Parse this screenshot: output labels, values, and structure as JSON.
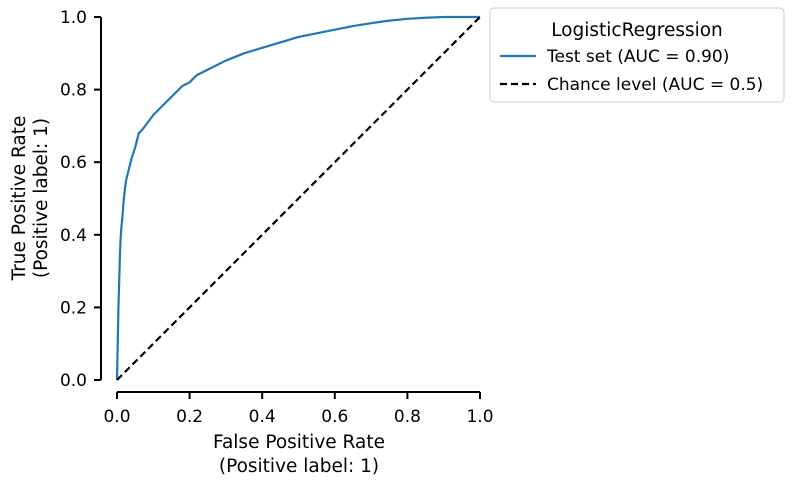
{
  "chart_data": {
    "type": "line",
    "title": "",
    "xlabel_lines": [
      "False Positive Rate",
      "(Positive label: 1)"
    ],
    "ylabel_lines": [
      "True Positive Rate",
      "(Positive label: 1)"
    ],
    "xlim": [
      0.0,
      1.0
    ],
    "ylim": [
      0.0,
      1.0
    ],
    "xticks": [
      "0.0",
      "0.2",
      "0.4",
      "0.6",
      "0.8",
      "1.0"
    ],
    "yticks": [
      "0.0",
      "0.2",
      "0.4",
      "0.6",
      "0.8",
      "1.0"
    ],
    "grid": false,
    "legend": {
      "title": "LogisticRegression",
      "placement": "outside-top-right"
    },
    "series": [
      {
        "name": "Test set (AUC = 0.90)",
        "color": "#1f77b4",
        "style": "solid",
        "x": [
          0.0,
          0.002,
          0.004,
          0.006,
          0.008,
          0.01,
          0.012,
          0.015,
          0.018,
          0.021,
          0.025,
          0.03,
          0.035,
          0.04,
          0.05,
          0.06,
          0.07,
          0.085,
          0.1,
          0.12,
          0.14,
          0.16,
          0.18,
          0.2,
          0.22,
          0.25,
          0.28,
          0.3,
          0.35,
          0.4,
          0.45,
          0.5,
          0.55,
          0.6,
          0.65,
          0.7,
          0.75,
          0.8,
          0.85,
          0.9,
          0.95,
          1.0
        ],
        "y": [
          0.0,
          0.1,
          0.2,
          0.27,
          0.34,
          0.39,
          0.42,
          0.45,
          0.49,
          0.52,
          0.55,
          0.57,
          0.59,
          0.61,
          0.64,
          0.68,
          0.69,
          0.71,
          0.73,
          0.75,
          0.77,
          0.79,
          0.81,
          0.82,
          0.84,
          0.855,
          0.87,
          0.88,
          0.9,
          0.915,
          0.93,
          0.945,
          0.955,
          0.965,
          0.975,
          0.983,
          0.99,
          0.995,
          0.998,
          1.0,
          1.0,
          1.0
        ]
      },
      {
        "name": "Chance level (AUC = 0.5)",
        "color": "#000000",
        "style": "dashed",
        "x": [
          0.0,
          1.0
        ],
        "y": [
          0.0,
          1.0
        ]
      }
    ]
  }
}
